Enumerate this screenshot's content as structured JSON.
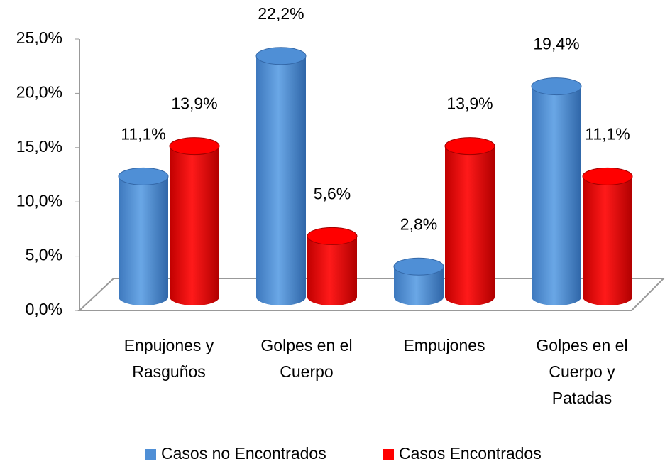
{
  "chart_data": {
    "type": "bar3d",
    "categories": [
      [
        "Enpujones y",
        "Rasguños"
      ],
      [
        "Golpes en el",
        "Cuerpo"
      ],
      [
        "Empujones"
      ],
      [
        "Golpes en el",
        "Cuerpo y",
        "Patadas"
      ]
    ],
    "series": [
      {
        "name": "Casos no Encontrados",
        "color": "#4f8fd6",
        "values": [
          11.1,
          22.2,
          2.8,
          19.4
        ],
        "value_labels": [
          "11,1%",
          "22,2%",
          "2,8%",
          "19,4%"
        ]
      },
      {
        "name": "Casos Encontrados",
        "color": "#ff0000",
        "values": [
          13.9,
          5.6,
          13.9,
          11.1
        ],
        "value_labels": [
          "13,9%",
          "5,6%",
          "13,9%",
          "11,1%"
        ]
      }
    ],
    "ylim": [
      0,
      25
    ],
    "yticks": [
      {
        "value": 0,
        "label": "0,0%"
      },
      {
        "value": 5,
        "label": "5,0%"
      },
      {
        "value": 10,
        "label": "10,0%"
      },
      {
        "value": 15,
        "label": "15,0%"
      },
      {
        "value": 20,
        "label": "20,0%"
      },
      {
        "value": 25,
        "label": "25,0%"
      }
    ],
    "legend": "bottom"
  }
}
